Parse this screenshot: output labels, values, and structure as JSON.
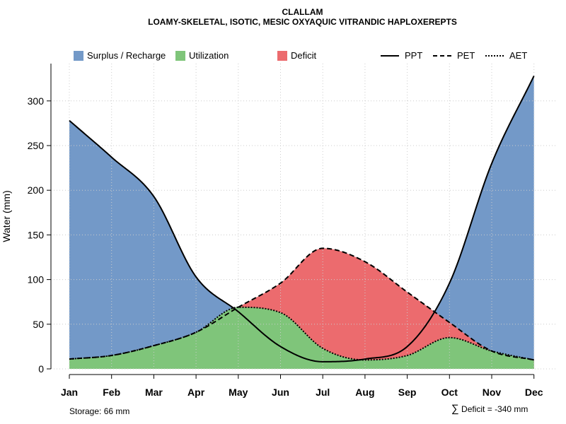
{
  "title": {
    "line1": "CLALLAM",
    "line2": "LOAMY-SKELETAL, ISOTIC, MESIC OXYAQUIC VITRANDIC HAPLOXEREPTS"
  },
  "legend": {
    "surplus": "Surplus / Recharge",
    "utilization": "Utilization",
    "deficit": "Deficit",
    "ppt": "PPT",
    "pet": "PET",
    "aet": "AET"
  },
  "footer": {
    "storage": "Storage: 66 mm",
    "deficit_symbol": "∑",
    "deficit": "Deficit = -340 mm"
  },
  "colors": {
    "surplus": "#7399C8",
    "utilization": "#7FC57A",
    "deficit": "#EC6B6E",
    "line": "#000000",
    "grid": "#CCCCCC"
  },
  "chart_data": {
    "type": "area",
    "title": "CLALLAM",
    "subtitle": "LOAMY-SKELETAL, ISOTIC, MESIC OXYAQUIC VITRANDIC HAPLOXEREPTS",
    "xlabel": "",
    "ylabel": "Water (mm)",
    "categories": [
      "Jan",
      "Feb",
      "Mar",
      "Apr",
      "May",
      "Jun",
      "Jul",
      "Aug",
      "Sep",
      "Oct",
      "Nov",
      "Dec"
    ],
    "yticks": [
      0,
      50,
      100,
      150,
      200,
      250,
      300
    ],
    "ylim": [
      0,
      330
    ],
    "grid": true,
    "legend_position": "top",
    "series": [
      {
        "name": "PPT",
        "style": "solid",
        "values": [
          278,
          237,
          193,
          103,
          64,
          25,
          8,
          11,
          25,
          96,
          230,
          328
        ]
      },
      {
        "name": "PET",
        "style": "dashed",
        "values": [
          11,
          15,
          26,
          41,
          69,
          96,
          135,
          120,
          86,
          52,
          20,
          10
        ]
      },
      {
        "name": "AET",
        "style": "dotted",
        "values": [
          11,
          15,
          26,
          41,
          69,
          63,
          23,
          10,
          15,
          35,
          20,
          10
        ]
      }
    ]
  }
}
